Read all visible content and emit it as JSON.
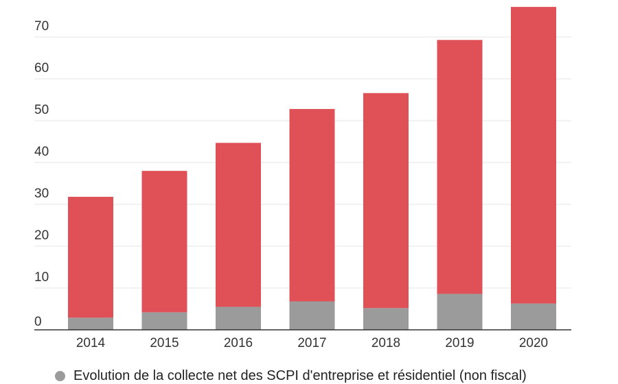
{
  "chart_data": {
    "type": "bar",
    "stacked": true,
    "categories": [
      "2014",
      "2015",
      "2016",
      "2017",
      "2018",
      "2019",
      "2020"
    ],
    "series": [
      {
        "name": "Evolution de la collecte net des SCPI d'entreprise et résidentiel (non fiscal)",
        "color": "#9b9b9b",
        "values": [
          2.9,
          4.2,
          5.5,
          6.8,
          5.2,
          8.6,
          6.3
        ]
      },
      {
        "color": "#df5157",
        "values": [
          28.9,
          33.8,
          39.2,
          46.0,
          51.4,
          60.7,
          70.9
        ]
      }
    ],
    "totals": [
      31.8,
      38.0,
      44.7,
      52.8,
      56.6,
      69.3,
      77.2
    ],
    "yticks": [
      0,
      10,
      20,
      30,
      40,
      50,
      60,
      70
    ],
    "ylim": [
      0,
      78
    ],
    "grid": true,
    "legend": "bottom-left"
  }
}
